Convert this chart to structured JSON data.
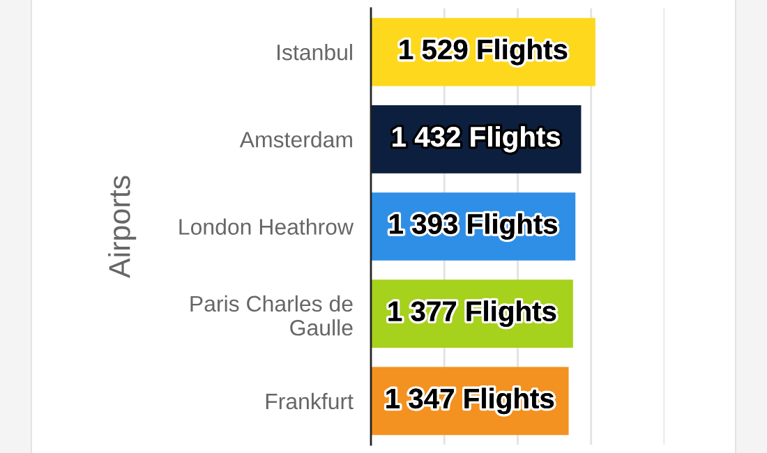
{
  "chart_data": {
    "type": "bar",
    "orientation": "horizontal",
    "ylabel": "Airports",
    "categories": [
      "Istanbul",
      "Amsterdam",
      "London Heathrow",
      "Paris Charles de Gaulle",
      "Frankfurt"
    ],
    "values": [
      1529,
      1432,
      1393,
      1377,
      1347
    ],
    "colors": [
      "#fdd81d",
      "#0c1f3e",
      "#2f8fe6",
      "#a6d11d",
      "#f39220"
    ],
    "value_labels": [
      "1 529 Flights",
      "1 432 Flights",
      "1 393 Flights",
      "1 377 Flights",
      "1 347 Flights"
    ],
    "xlim": [
      0,
      2000
    ],
    "xticks": [
      {
        "value": 500,
        "label": null
      },
      {
        "value": 1000,
        "label": null
      },
      {
        "value": 1500,
        "label": null
      },
      {
        "value": 2000,
        "label": null
      }
    ],
    "grid": "x",
    "tick_labels": "y"
  }
}
